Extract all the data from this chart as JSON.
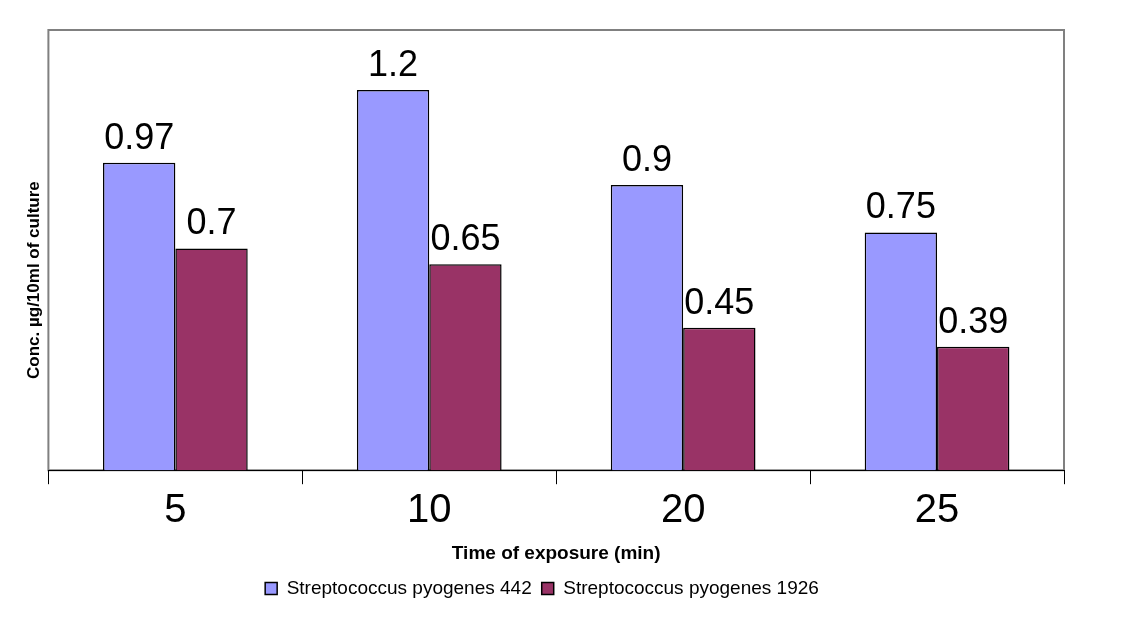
{
  "chart_data": {
    "type": "bar",
    "xlabel": "Time of exposure (min)",
    "ylabel": "Conc. µg/10ml of culture",
    "categories": [
      "5",
      "10",
      "20",
      "25"
    ],
    "series": [
      {
        "name": "Streptococcus pyogenes 442",
        "color": "#9999ff",
        "values": [
          0.97,
          1.2,
          0.9,
          0.75
        ]
      },
      {
        "name": "Streptococcus pyogenes 1926",
        "color": "#993366",
        "values": [
          0.7,
          0.65,
          0.45,
          0.39
        ]
      }
    ],
    "data_labels": true,
    "legend": "bottom",
    "grid": false
  }
}
